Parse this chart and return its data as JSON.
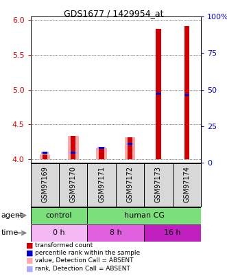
{
  "title": "GDS1677 / 1429954_at",
  "samples": [
    "GSM97169",
    "GSM97170",
    "GSM97171",
    "GSM97172",
    "GSM97173",
    "GSM97174"
  ],
  "ylim_left": [
    3.95,
    6.05
  ],
  "ylim_right": [
    0,
    100
  ],
  "yticks_left": [
    4.0,
    4.5,
    5.0,
    5.5,
    6.0
  ],
  "yticks_right": [
    0,
    25,
    50,
    75,
    100
  ],
  "red_values": [
    4.07,
    4.33,
    4.16,
    4.31,
    5.88,
    5.91
  ],
  "blue_values": [
    4.09,
    4.09,
    4.16,
    4.22,
    4.94,
    4.92
  ],
  "pink_values": [
    4.07,
    4.33,
    4.16,
    4.31,
    null,
    null
  ],
  "lb_values": [
    4.09,
    4.09,
    4.16,
    4.22,
    null,
    null
  ],
  "bar_bottom": 4.0,
  "red_color": "#cc0000",
  "blue_color": "#0000cc",
  "pink_color": "#ffaaaa",
  "lb_color": "#aaaaff",
  "bg_color": "#d8d8d8",
  "plot_bg": "#ffffff",
  "left_tick_color": "#cc0000",
  "right_tick_color": "#0000cc",
  "agent_green": "#7be07b",
  "time_colors": [
    "#f4b8f4",
    "#e060e0",
    "#c020c0"
  ],
  "legend_items": [
    [
      "#cc0000",
      "transformed count"
    ],
    [
      "#0000cc",
      "percentile rank within the sample"
    ],
    [
      "#ffaaaa",
      "value, Detection Call = ABSENT"
    ],
    [
      "#aaaaff",
      "rank, Detection Call = ABSENT"
    ]
  ]
}
